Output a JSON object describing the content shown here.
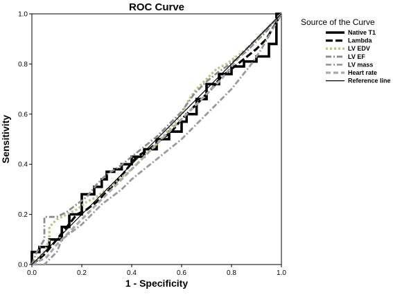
{
  "chart_data": {
    "type": "line",
    "title": "ROC Curve",
    "xlabel": "1 - Specificity",
    "ylabel": "Sensitivity",
    "xlim": [
      0,
      1
    ],
    "ylim": [
      0,
      1
    ],
    "xticks": [
      "0.0",
      "0.2",
      "0.4",
      "0.6",
      "0.8",
      "1.0"
    ],
    "yticks": [
      "0.0",
      "0.2",
      "0.4",
      "0.6",
      "0.8",
      "1.0"
    ],
    "grid": false,
    "legend_title": "Source of the Curve",
    "legend_position": "right",
    "series": [
      {
        "name": "Native T1",
        "color": "#000000",
        "style": "solid",
        "width": 3.6,
        "x": [
          0,
          0,
          0.03,
          0.03,
          0.07,
          0.07,
          0.12,
          0.12,
          0.15,
          0.15,
          0.2,
          0.2,
          0.25,
          0.25,
          0.28,
          0.28,
          0.3,
          0.3,
          0.33,
          0.33,
          0.36,
          0.36,
          0.4,
          0.4,
          0.45,
          0.45,
          0.5,
          0.5,
          0.55,
          0.55,
          0.6,
          0.6,
          0.62,
          0.62,
          0.66,
          0.66,
          0.7,
          0.7,
          0.75,
          0.75,
          0.8,
          0.8,
          0.85,
          0.85,
          0.9,
          0.9,
          0.95,
          0.95,
          0.98,
          0.98,
          1
        ],
        "y": [
          0,
          0.05,
          0.05,
          0.07,
          0.07,
          0.1,
          0.1,
          0.15,
          0.15,
          0.2,
          0.2,
          0.28,
          0.28,
          0.31,
          0.31,
          0.34,
          0.34,
          0.37,
          0.37,
          0.38,
          0.38,
          0.4,
          0.4,
          0.43,
          0.43,
          0.46,
          0.46,
          0.5,
          0.5,
          0.53,
          0.53,
          0.57,
          0.57,
          0.6,
          0.6,
          0.66,
          0.66,
          0.72,
          0.72,
          0.76,
          0.76,
          0.79,
          0.79,
          0.81,
          0.81,
          0.83,
          0.83,
          0.88,
          0.88,
          1,
          1
        ]
      },
      {
        "name": "Lambda",
        "color": "#000000",
        "style": "longdash",
        "width": 3.2,
        "x": [
          0,
          0.05,
          0.1,
          0.14,
          0.18,
          0.22,
          0.26,
          0.3,
          0.34,
          0.38,
          0.42,
          0.47,
          0.52,
          0.56,
          0.6,
          0.64,
          0.68,
          0.72,
          0.76,
          0.8,
          0.85,
          0.9,
          0.94,
          0.97,
          1
        ],
        "y": [
          0,
          0.04,
          0.1,
          0.15,
          0.2,
          0.22,
          0.25,
          0.29,
          0.33,
          0.38,
          0.43,
          0.46,
          0.5,
          0.53,
          0.58,
          0.62,
          0.66,
          0.7,
          0.75,
          0.78,
          0.82,
          0.86,
          0.9,
          0.95,
          1
        ]
      },
      {
        "name": "LV EDV",
        "color": "#c2c08a",
        "style": "dotted",
        "width": 3.4,
        "x": [
          0,
          0.05,
          0.07,
          0.07,
          0.1,
          0.14,
          0.18,
          0.22,
          0.26,
          0.3,
          0.35,
          0.4,
          0.45,
          0.5,
          0.55,
          0.6,
          0.63,
          0.66,
          0.7,
          0.74,
          0.78,
          0.82,
          0.86,
          0.9,
          0.94,
          0.97,
          1
        ],
        "y": [
          0,
          0.05,
          0.1,
          0.15,
          0.18,
          0.2,
          0.22,
          0.25,
          0.27,
          0.3,
          0.34,
          0.38,
          0.43,
          0.48,
          0.54,
          0.6,
          0.66,
          0.7,
          0.74,
          0.78,
          0.8,
          0.83,
          0.86,
          0.9,
          0.94,
          0.97,
          1
        ]
      },
      {
        "name": "LV EF",
        "color": "#8c8c8c",
        "style": "dashdot",
        "width": 2.8,
        "x": [
          0,
          0.02,
          0.05,
          0.05,
          0.1,
          0.14,
          0.18,
          0.22,
          0.26,
          0.3,
          0.35,
          0.4,
          0.45,
          0.5,
          0.55,
          0.6,
          0.65,
          0.7,
          0.75,
          0.78,
          0.82,
          0.86,
          0.9,
          0.94,
          0.97,
          1
        ],
        "y": [
          0,
          0.05,
          0.1,
          0.19,
          0.19,
          0.21,
          0.24,
          0.27,
          0.32,
          0.36,
          0.39,
          0.43,
          0.47,
          0.51,
          0.56,
          0.61,
          0.68,
          0.73,
          0.77,
          0.79,
          0.82,
          0.85,
          0.89,
          0.93,
          0.97,
          1
        ]
      },
      {
        "name": "LV mass",
        "color": "#9a9a9a",
        "style": "dashdot",
        "width": 2.8,
        "x": [
          0,
          0.05,
          0.1,
          0.12,
          0.16,
          0.2,
          0.24,
          0.28,
          0.32,
          0.36,
          0.4,
          0.45,
          0.5,
          0.55,
          0.6,
          0.64,
          0.68,
          0.72,
          0.76,
          0.8,
          0.84,
          0.88,
          0.92,
          0.96,
          1
        ],
        "y": [
          0,
          0,
          0.05,
          0.1,
          0.13,
          0.16,
          0.2,
          0.24,
          0.27,
          0.3,
          0.34,
          0.38,
          0.42,
          0.46,
          0.5,
          0.54,
          0.58,
          0.62,
          0.66,
          0.7,
          0.75,
          0.8,
          0.86,
          0.93,
          1
        ]
      },
      {
        "name": "Heart rate",
        "color": "#a8a8a8",
        "style": "dashed",
        "width": 3.2,
        "x": [
          0,
          0.06,
          0.1,
          0.14,
          0.18,
          0.22,
          0.26,
          0.3,
          0.34,
          0.38,
          0.42,
          0.46,
          0.5,
          0.55,
          0.6,
          0.64,
          0.68,
          0.72,
          0.76,
          0.8,
          0.84,
          0.88,
          0.92,
          0.96,
          1
        ],
        "y": [
          0,
          0.03,
          0.08,
          0.12,
          0.16,
          0.2,
          0.24,
          0.28,
          0.32,
          0.36,
          0.4,
          0.44,
          0.48,
          0.53,
          0.58,
          0.62,
          0.66,
          0.7,
          0.74,
          0.79,
          0.84,
          0.88,
          0.92,
          0.96,
          1
        ]
      },
      {
        "name": "Reference line",
        "color": "#000000",
        "style": "solid",
        "width": 1.2,
        "x": [
          0,
          1
        ],
        "y": [
          0,
          1
        ]
      }
    ]
  }
}
